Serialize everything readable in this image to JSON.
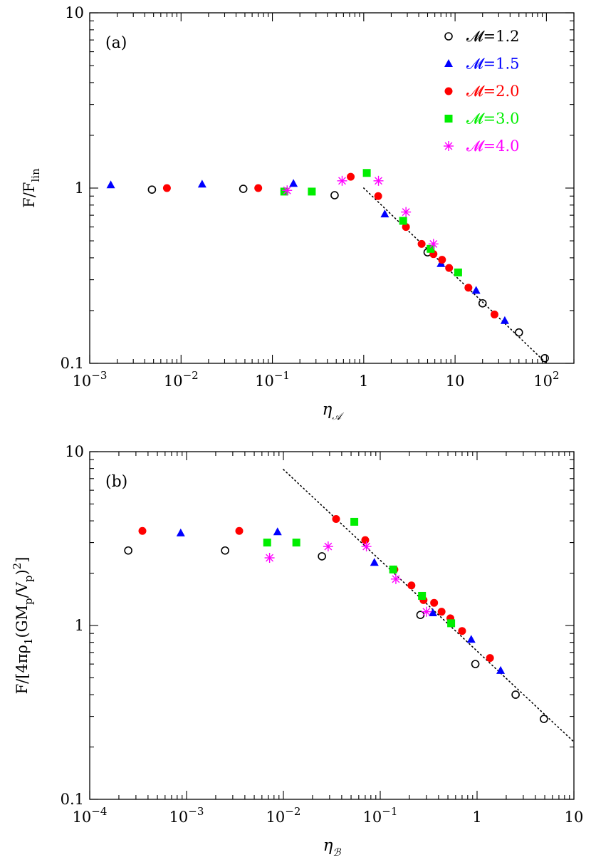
{
  "chart_data": [
    {
      "type": "scatter",
      "panel_label": "(a)",
      "xscale": "log",
      "yscale": "log",
      "xlim": [
        0.001,
        200
      ],
      "ylim": [
        0.1,
        10
      ],
      "x_ticks": [
        {
          "v": 0.001,
          "base": "10",
          "exp": "−3"
        },
        {
          "v": 0.01,
          "base": "10",
          "exp": "−2"
        },
        {
          "v": 0.1,
          "base": "10",
          "exp": "−1"
        },
        {
          "v": 1,
          "base": "1",
          "exp": ""
        },
        {
          "v": 10,
          "base": "10",
          "exp": ""
        },
        {
          "v": 100,
          "base": "10",
          "exp": "2"
        }
      ],
      "y_ticks": [
        {
          "v": 0.1,
          "label": "0.1"
        },
        {
          "v": 1,
          "label": "1"
        },
        {
          "v": 10,
          "label": "10"
        }
      ],
      "xlabel": {
        "main": "η",
        "sub": "𝒜"
      },
      "ylabel": {
        "main": "F/F",
        "sub": "lin"
      },
      "legend_position": "top-right",
      "series": [
        {
          "name": "𝓜=1.2",
          "marker": "circle-open",
          "color": "#000000",
          "points": [
            [
              0.0048,
              0.98
            ],
            [
              0.048,
              0.99
            ],
            [
              0.48,
              0.91
            ],
            [
              5.0,
              0.43
            ],
            [
              20,
              0.22
            ],
            [
              50,
              0.15
            ],
            [
              96,
              0.107
            ]
          ]
        },
        {
          "name": "𝓜=1.5",
          "marker": "triangle",
          "color": "#0000ff",
          "points": [
            [
              0.0017,
              1.04
            ],
            [
              0.017,
              1.05
            ],
            [
              0.17,
              1.06
            ],
            [
              1.7,
              0.71
            ],
            [
              7.0,
              0.37
            ],
            [
              17,
              0.26
            ],
            [
              35,
              0.175
            ]
          ]
        },
        {
          "name": "𝓜=2.0",
          "marker": "circle-filled",
          "color": "#ff0000",
          "points": [
            [
              0.007,
              1.0
            ],
            [
              0.07,
              1.0
            ],
            [
              0.72,
              1.16
            ],
            [
              1.44,
              0.9
            ],
            [
              2.9,
              0.6
            ],
            [
              4.3,
              0.48
            ],
            [
              5.8,
              0.42
            ],
            [
              7.2,
              0.39
            ],
            [
              8.6,
              0.35
            ],
            [
              14,
              0.27
            ],
            [
              27,
              0.19
            ]
          ]
        },
        {
          "name": "𝓜=3.0",
          "marker": "square",
          "color": "#00ee00",
          "points": [
            [
              0.135,
              0.955
            ],
            [
              0.27,
              0.955
            ],
            [
              1.08,
              1.22
            ],
            [
              2.7,
              0.65
            ],
            [
              5.4,
              0.45
            ],
            [
              10.8,
              0.33
            ]
          ]
        },
        {
          "name": "𝓜=4.0",
          "marker": "asterisk",
          "color": "#ff00ff",
          "points": [
            [
              0.145,
              0.97
            ],
            [
              0.58,
              1.1
            ],
            [
              1.45,
              1.1
            ],
            [
              2.9,
              0.73
            ],
            [
              5.8,
              0.48
            ]
          ]
        }
      ],
      "fit_line": {
        "style": "dotted",
        "color": "#000000",
        "points": [
          [
            1.0,
            1.0
          ],
          [
            100,
            0.1
          ]
        ]
      }
    },
    {
      "type": "scatter",
      "panel_label": "(b)",
      "xscale": "log",
      "yscale": "log",
      "xlim": [
        0.0001,
        10
      ],
      "ylim": [
        0.1,
        10
      ],
      "x_ticks": [
        {
          "v": 0.0001,
          "base": "10",
          "exp": "−4"
        },
        {
          "v": 0.001,
          "base": "10",
          "exp": "−3"
        },
        {
          "v": 0.01,
          "base": "10",
          "exp": "−2"
        },
        {
          "v": 0.1,
          "base": "10",
          "exp": "−1"
        },
        {
          "v": 1,
          "base": "1",
          "exp": ""
        },
        {
          "v": 10,
          "base": "10",
          "exp": ""
        }
      ],
      "y_ticks": [
        {
          "v": 0.1,
          "label": "0.1"
        },
        {
          "v": 1,
          "label": "1"
        },
        {
          "v": 10,
          "label": "10"
        }
      ],
      "xlabel": {
        "main": "η",
        "sub": "ℬ"
      },
      "ylabel_parts": [
        "F/[4πρ",
        "1",
        "(GM",
        "p",
        "/V",
        "p",
        ")",
        "2",
        "]"
      ],
      "series": [
        {
          "name": "𝓜=1.2",
          "marker": "circle-open",
          "color": "#000000",
          "points": [
            [
              0.00025,
              2.7
            ],
            [
              0.0025,
              2.7
            ],
            [
              0.025,
              2.5
            ],
            [
              0.26,
              1.15
            ],
            [
              0.96,
              0.6
            ],
            [
              2.5,
              0.4
            ],
            [
              4.9,
              0.29
            ]
          ]
        },
        {
          "name": "𝓜=1.5",
          "marker": "triangle",
          "color": "#0000ff",
          "points": [
            [
              0.00087,
              3.4
            ],
            [
              0.0087,
              3.45
            ],
            [
              0.087,
              2.3
            ],
            [
              0.35,
              1.18
            ],
            [
              0.87,
              0.83
            ],
            [
              1.75,
              0.55
            ]
          ]
        },
        {
          "name": "𝓜=2.0",
          "marker": "circle-filled",
          "color": "#ff0000",
          "points": [
            [
              0.00035,
              3.5
            ],
            [
              0.0035,
              3.5
            ],
            [
              0.035,
              4.1
            ],
            [
              0.07,
              3.1
            ],
            [
              0.14,
              2.1
            ],
            [
              0.21,
              1.7
            ],
            [
              0.28,
              1.4
            ],
            [
              0.36,
              1.35
            ],
            [
              0.43,
              1.2
            ],
            [
              0.53,
              1.1
            ],
            [
              0.7,
              0.93
            ],
            [
              1.36,
              0.65
            ]
          ]
        },
        {
          "name": "𝓜=3.0",
          "marker": "square",
          "color": "#00ee00",
          "points": [
            [
              0.0068,
              3.0
            ],
            [
              0.0136,
              3.0
            ],
            [
              0.054,
              3.95
            ],
            [
              0.136,
              2.1
            ],
            [
              0.27,
              1.48
            ],
            [
              0.54,
              1.03
            ]
          ]
        },
        {
          "name": "𝓜=4.0",
          "marker": "asterisk",
          "color": "#ff00ff",
          "points": [
            [
              0.0072,
              2.45
            ],
            [
              0.029,
              2.85
            ],
            [
              0.072,
              2.85
            ],
            [
              0.145,
              1.85
            ],
            [
              0.3,
              1.2
            ]
          ]
        }
      ],
      "fit_line": {
        "style": "dotted",
        "color": "#000000",
        "points": [
          [
            0.01,
            7.9
          ],
          [
            10,
            0.214
          ]
        ]
      }
    }
  ]
}
